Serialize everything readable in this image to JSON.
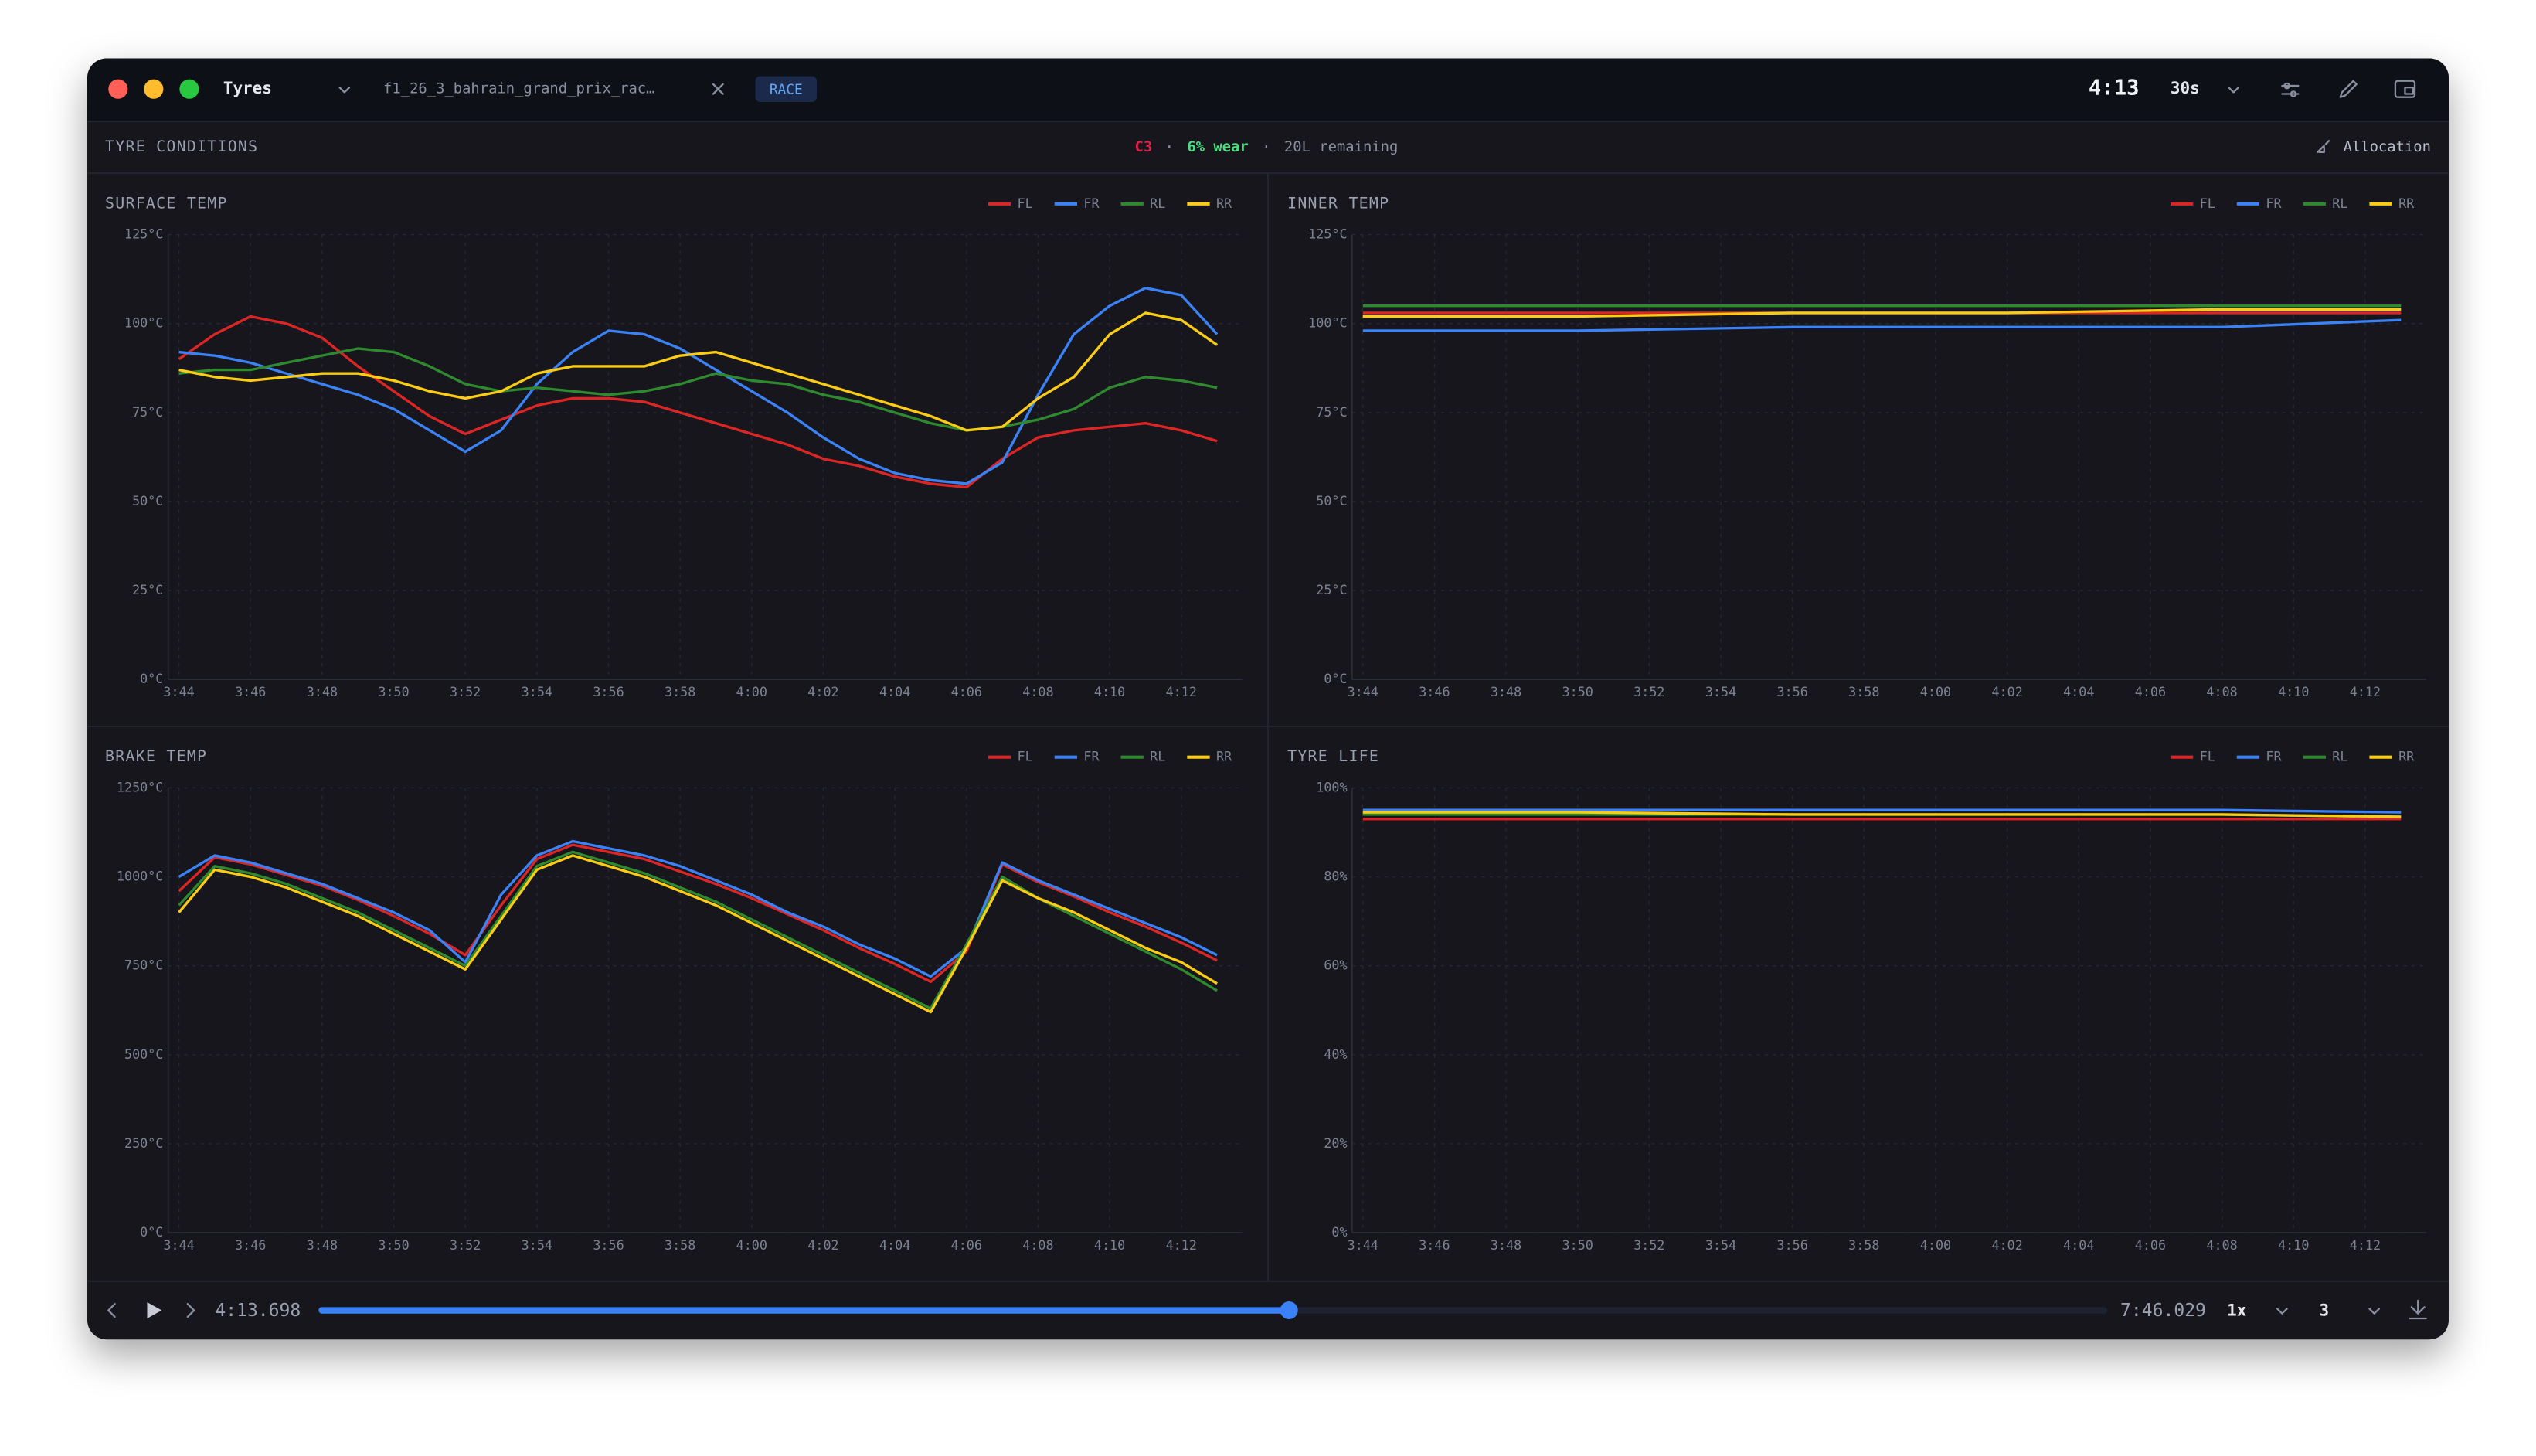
{
  "window": {
    "title": "Tyres",
    "tab": "f1_26_3_bahrain_grand_prix_rac…",
    "badge": "RACE",
    "clock": "4:13",
    "range": "30s"
  },
  "section": {
    "title": "TYRE CONDITIONS",
    "compound": "C3",
    "separator": "·",
    "wear": "6% wear",
    "remaining": "20L remaining",
    "action": "Allocation"
  },
  "playback": {
    "current": "4:13.698",
    "total": "7:46.029",
    "speed": "1x",
    "count": "3"
  },
  "chart_data": [
    {
      "type": "line",
      "title": "SURFACE TEMP",
      "x": [
        224,
        225,
        226,
        227,
        228,
        229,
        230,
        231,
        232,
        233,
        234,
        235,
        236,
        237,
        238,
        239,
        240,
        241,
        242,
        243,
        244,
        245,
        246,
        247,
        248,
        249,
        250,
        251,
        252,
        253
      ],
      "xlim": [
        223.7,
        253.7
      ],
      "xticks": [
        {
          "value": 224,
          "label": "3:44"
        },
        {
          "value": 226,
          "label": "3:46"
        },
        {
          "value": 228,
          "label": "3:48"
        },
        {
          "value": 230,
          "label": "3:50"
        },
        {
          "value": 232,
          "label": "3:52"
        },
        {
          "value": 234,
          "label": "3:54"
        },
        {
          "value": 236,
          "label": "3:56"
        },
        {
          "value": 238,
          "label": "3:58"
        },
        {
          "value": 240,
          "label": "4:00"
        },
        {
          "value": 242,
          "label": "4:02"
        },
        {
          "value": 244,
          "label": "4:04"
        },
        {
          "value": 246,
          "label": "4:06"
        },
        {
          "value": 248,
          "label": "4:08"
        },
        {
          "value": 250,
          "label": "4:10"
        },
        {
          "value": 252,
          "label": "4:12"
        }
      ],
      "ylim": [
        0,
        125
      ],
      "yticks": [
        {
          "value": 0,
          "label": "0°C"
        },
        {
          "value": 25,
          "label": "25°C"
        },
        {
          "value": 50,
          "label": "50°C"
        },
        {
          "value": 75,
          "label": "75°C"
        },
        {
          "value": 100,
          "label": "100°C"
        },
        {
          "value": 125,
          "label": "125°C"
        }
      ],
      "grid": true,
      "legend": "top-right",
      "series": [
        {
          "name": "FL",
          "color": "#dc2626",
          "values": [
            90,
            97,
            102,
            100,
            96,
            88,
            81,
            74,
            69,
            73,
            77,
            79,
            79,
            78,
            75,
            72,
            69,
            66,
            62,
            60,
            57,
            55,
            54,
            62,
            68,
            70,
            71,
            72,
            70,
            67
          ]
        },
        {
          "name": "FR",
          "color": "#3b82f6",
          "values": [
            92,
            91,
            89,
            86,
            83,
            80,
            76,
            70,
            64,
            70,
            83,
            92,
            98,
            97,
            93,
            87,
            81,
            75,
            68,
            62,
            58,
            56,
            55,
            61,
            80,
            97,
            105,
            110,
            108,
            97
          ]
        },
        {
          "name": "RL",
          "color": "#2f8a2f",
          "values": [
            86,
            87,
            87,
            89,
            91,
            93,
            92,
            88,
            83,
            81,
            82,
            81,
            80,
            81,
            83,
            86,
            84,
            83,
            80,
            78,
            75,
            72,
            70,
            71,
            73,
            76,
            82,
            85,
            84,
            82
          ]
        },
        {
          "name": "RR",
          "color": "#facc15",
          "values": [
            87,
            85,
            84,
            85,
            86,
            86,
            84,
            81,
            79,
            81,
            86,
            88,
            88,
            88,
            91,
            92,
            89,
            86,
            83,
            80,
            77,
            74,
            70,
            71,
            79,
            85,
            97,
            103,
            101,
            94
          ]
        }
      ]
    },
    {
      "type": "line",
      "title": "INNER TEMP",
      "x": [
        224,
        230,
        236,
        242,
        248,
        253
      ],
      "xlim": [
        223.7,
        253.7
      ],
      "xticks": [
        {
          "value": 224,
          "label": "3:44"
        },
        {
          "value": 226,
          "label": "3:46"
        },
        {
          "value": 228,
          "label": "3:48"
        },
        {
          "value": 230,
          "label": "3:50"
        },
        {
          "value": 232,
          "label": "3:52"
        },
        {
          "value": 234,
          "label": "3:54"
        },
        {
          "value": 236,
          "label": "3:56"
        },
        {
          "value": 238,
          "label": "3:58"
        },
        {
          "value": 240,
          "label": "4:00"
        },
        {
          "value": 242,
          "label": "4:02"
        },
        {
          "value": 244,
          "label": "4:04"
        },
        {
          "value": 246,
          "label": "4:06"
        },
        {
          "value": 248,
          "label": "4:08"
        },
        {
          "value": 250,
          "label": "4:10"
        },
        {
          "value": 252,
          "label": "4:12"
        }
      ],
      "ylim": [
        0,
        125
      ],
      "yticks": [
        {
          "value": 0,
          "label": "0°C"
        },
        {
          "value": 25,
          "label": "25°C"
        },
        {
          "value": 50,
          "label": "50°C"
        },
        {
          "value": 75,
          "label": "75°C"
        },
        {
          "value": 100,
          "label": "100°C"
        },
        {
          "value": 125,
          "label": "125°C"
        }
      ],
      "grid": true,
      "legend": "top-right",
      "series": [
        {
          "name": "FL",
          "color": "#dc2626",
          "values": [
            103,
            103,
            103,
            103,
            103,
            103
          ]
        },
        {
          "name": "FR",
          "color": "#3b82f6",
          "values": [
            98,
            98,
            99,
            99,
            99,
            101
          ]
        },
        {
          "name": "RL",
          "color": "#2f8a2f",
          "values": [
            105,
            105,
            105,
            105,
            105,
            105
          ]
        },
        {
          "name": "RR",
          "color": "#facc15",
          "values": [
            102,
            102,
            103,
            103,
            104,
            104
          ]
        }
      ]
    },
    {
      "type": "line",
      "title": "BRAKE TEMP",
      "x": [
        224,
        225,
        226,
        227,
        228,
        229,
        230,
        231,
        232,
        233,
        234,
        235,
        236,
        237,
        238,
        239,
        240,
        241,
        242,
        243,
        244,
        245,
        246,
        247,
        248,
        249,
        250,
        251,
        252,
        253
      ],
      "xlim": [
        223.7,
        253.7
      ],
      "xticks": [
        {
          "value": 224,
          "label": "3:44"
        },
        {
          "value": 226,
          "label": "3:46"
        },
        {
          "value": 228,
          "label": "3:48"
        },
        {
          "value": 230,
          "label": "3:50"
        },
        {
          "value": 232,
          "label": "3:52"
        },
        {
          "value": 234,
          "label": "3:54"
        },
        {
          "value": 236,
          "label": "3:56"
        },
        {
          "value": 238,
          "label": "3:58"
        },
        {
          "value": 240,
          "label": "4:00"
        },
        {
          "value": 242,
          "label": "4:02"
        },
        {
          "value": 244,
          "label": "4:04"
        },
        {
          "value": 246,
          "label": "4:06"
        },
        {
          "value": 248,
          "label": "4:08"
        },
        {
          "value": 250,
          "label": "4:10"
        },
        {
          "value": 252,
          "label": "4:12"
        }
      ],
      "ylim": [
        0,
        1250
      ],
      "yticks": [
        {
          "value": 0,
          "label": "0°C"
        },
        {
          "value": 250,
          "label": "250°C"
        },
        {
          "value": 500,
          "label": "500°C"
        },
        {
          "value": 750,
          "label": "750°C"
        },
        {
          "value": 1000,
          "label": "1000°C"
        },
        {
          "value": 1250,
          "label": "1250°C"
        }
      ],
      "grid": true,
      "legend": "top-right",
      "series": [
        {
          "name": "FL",
          "color": "#dc2626",
          "values": [
            960,
            1055,
            1035,
            1005,
            975,
            935,
            890,
            840,
            780,
            920,
            1050,
            1090,
            1070,
            1050,
            1015,
            980,
            940,
            895,
            850,
            800,
            755,
            705,
            790,
            1035,
            985,
            945,
            900,
            860,
            815,
            765
          ]
        },
        {
          "name": "FR",
          "color": "#3b82f6",
          "values": [
            1000,
            1060,
            1040,
            1010,
            980,
            940,
            900,
            850,
            760,
            950,
            1060,
            1100,
            1080,
            1060,
            1030,
            990,
            950,
            900,
            860,
            810,
            770,
            720,
            800,
            1040,
            990,
            950,
            910,
            870,
            830,
            780
          ]
        },
        {
          "name": "RL",
          "color": "#2f8a2f",
          "values": [
            920,
            1030,
            1010,
            980,
            940,
            900,
            850,
            800,
            750,
            890,
            1030,
            1070,
            1040,
            1010,
            970,
            930,
            880,
            830,
            780,
            730,
            680,
            630,
            810,
            1000,
            940,
            890,
            840,
            790,
            740,
            680
          ]
        },
        {
          "name": "RR",
          "color": "#facc15",
          "values": [
            900,
            1020,
            1000,
            970,
            930,
            890,
            840,
            790,
            740,
            880,
            1020,
            1060,
            1030,
            1000,
            960,
            920,
            870,
            820,
            770,
            720,
            670,
            620,
            800,
            990,
            940,
            900,
            850,
            800,
            760,
            700
          ]
        }
      ]
    },
    {
      "type": "line",
      "title": "TYRE LIFE",
      "x": [
        224,
        230,
        236,
        242,
        248,
        253
      ],
      "xlim": [
        223.7,
        253.7
      ],
      "xticks": [
        {
          "value": 224,
          "label": "3:44"
        },
        {
          "value": 226,
          "label": "3:46"
        },
        {
          "value": 228,
          "label": "3:48"
        },
        {
          "value": 230,
          "label": "3:50"
        },
        {
          "value": 232,
          "label": "3:52"
        },
        {
          "value": 234,
          "label": "3:54"
        },
        {
          "value": 236,
          "label": "3:56"
        },
        {
          "value": 238,
          "label": "3:58"
        },
        {
          "value": 240,
          "label": "4:00"
        },
        {
          "value": 242,
          "label": "4:02"
        },
        {
          "value": 244,
          "label": "4:04"
        },
        {
          "value": 246,
          "label": "4:06"
        },
        {
          "value": 248,
          "label": "4:08"
        },
        {
          "value": 250,
          "label": "4:10"
        },
        {
          "value": 252,
          "label": "4:12"
        }
      ],
      "ylim": [
        0,
        100
      ],
      "yticks": [
        {
          "value": 0,
          "label": "0%"
        },
        {
          "value": 20,
          "label": "20%"
        },
        {
          "value": 40,
          "label": "40%"
        },
        {
          "value": 60,
          "label": "60%"
        },
        {
          "value": 80,
          "label": "80%"
        },
        {
          "value": 100,
          "label": "100%"
        }
      ],
      "grid": true,
      "legend": "top-right",
      "series": [
        {
          "name": "FL",
          "color": "#dc2626",
          "values": [
            93,
            93,
            93,
            93,
            93,
            93
          ]
        },
        {
          "name": "FR",
          "color": "#3b82f6",
          "values": [
            95,
            95,
            95,
            95,
            95,
            94.5
          ]
        },
        {
          "name": "RL",
          "color": "#2f8a2f",
          "values": [
            94,
            94,
            94,
            94,
            94,
            93.5
          ]
        },
        {
          "name": "RR",
          "color": "#facc15",
          "values": [
            94.5,
            94.5,
            94,
            94,
            94,
            93.5
          ]
        }
      ]
    }
  ]
}
